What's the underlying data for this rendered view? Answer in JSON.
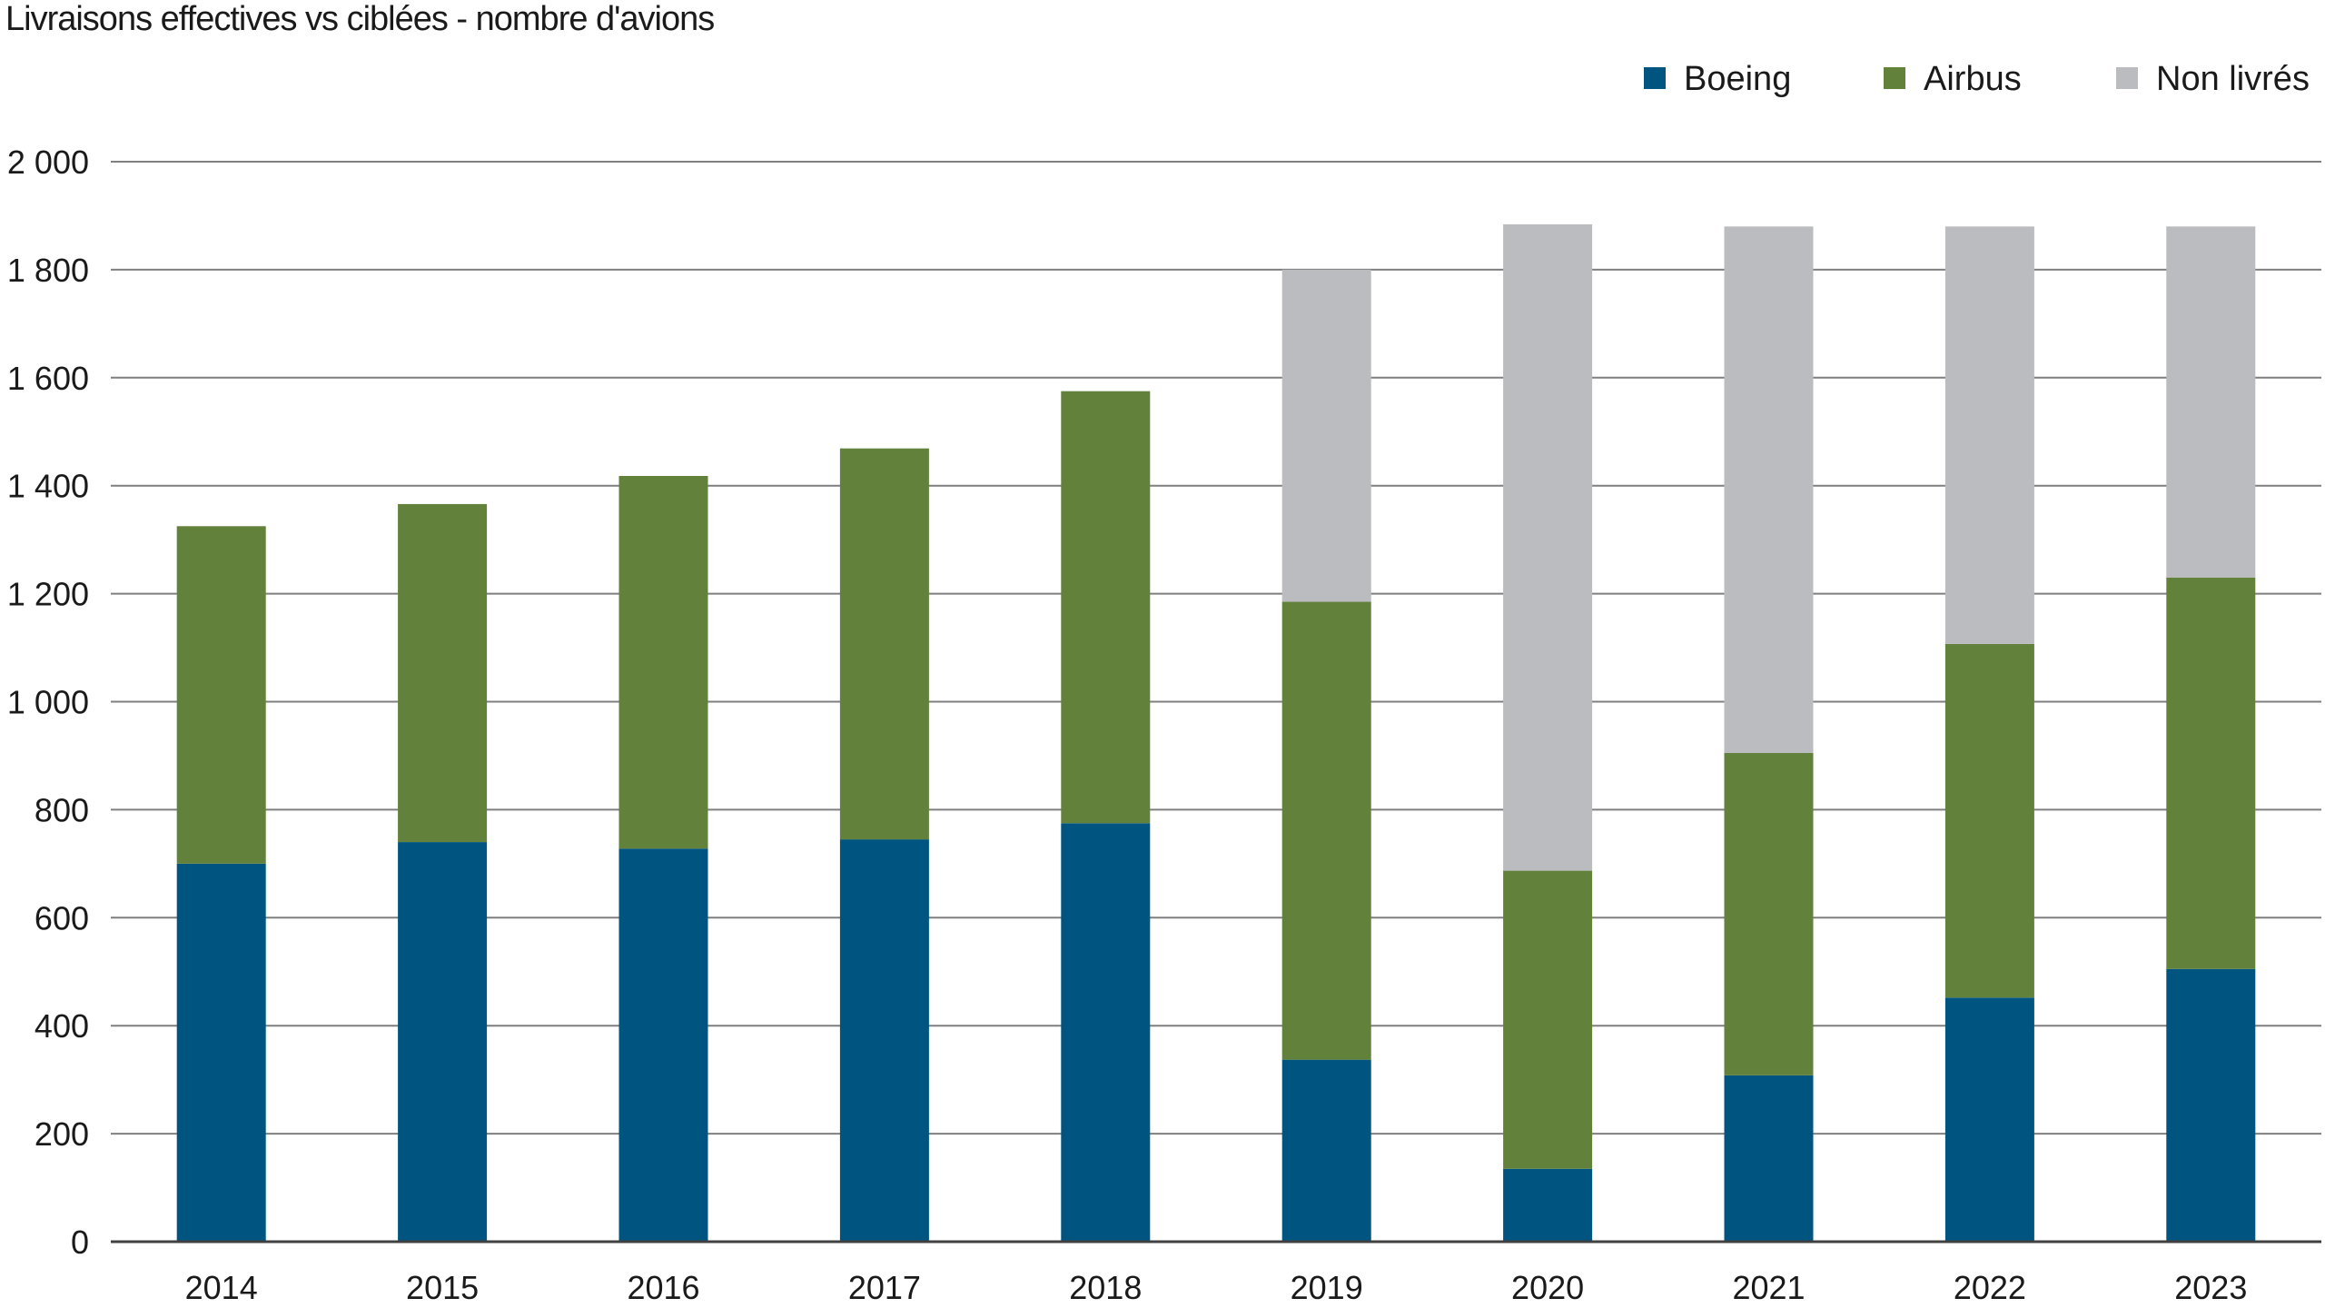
{
  "chart_data": {
    "type": "bar",
    "stacked": true,
    "title": "Livraisons effectives vs ciblées - nombre d'avions",
    "xlabel": "",
    "ylabel": "",
    "ylim": [
      0,
      2000
    ],
    "yticks": [
      0,
      200,
      400,
      600,
      800,
      1000,
      1200,
      1400,
      1600,
      1800,
      2000
    ],
    "ytick_labels": [
      "0",
      "200",
      "400",
      "600",
      "800",
      "1 000",
      "1 200",
      "1 400",
      "1 600",
      "1 800",
      "2 000"
    ],
    "grid": true,
    "legend_position": "top-right",
    "categories": [
      "2014",
      "2015",
      "2016",
      "2017",
      "2018",
      "2019",
      "2020",
      "2021",
      "2022",
      "2023"
    ],
    "series": [
      {
        "name": "Boeing",
        "color": "#005580",
        "values": [
          700,
          740,
          728,
          745,
          775,
          337,
          135,
          308,
          452,
          505
        ]
      },
      {
        "name": "Airbus",
        "color": "#62823c",
        "values": [
          625,
          626,
          690,
          724,
          800,
          848,
          552,
          597,
          655,
          725
        ]
      },
      {
        "name": "Non livrés",
        "color": "#bbbcbf",
        "values": [
          0,
          0,
          0,
          0,
          0,
          615,
          1197,
          975,
          773,
          650
        ]
      }
    ]
  }
}
